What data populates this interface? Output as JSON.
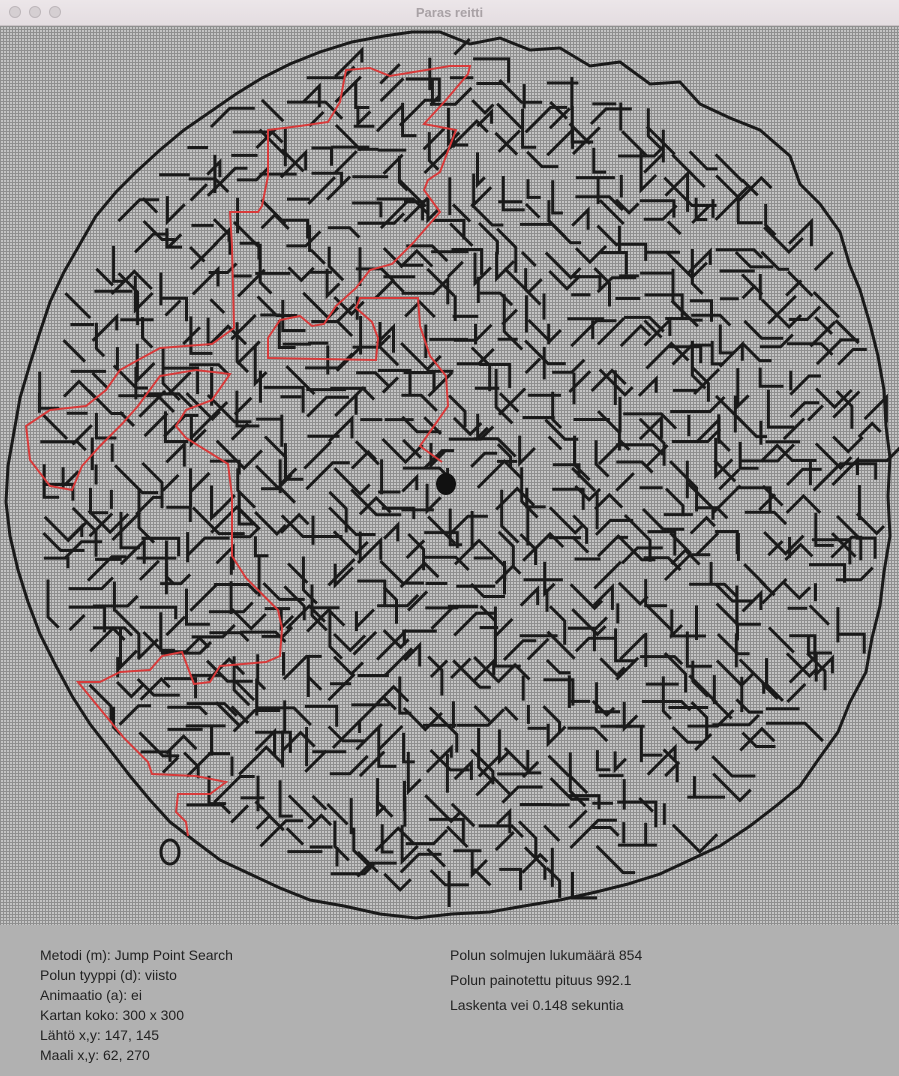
{
  "window": {
    "title": "Paras reitti"
  },
  "colors": {
    "path": "#d83a3a",
    "wall": "#1a1a1a",
    "grid": "#8f8f8f",
    "background": "#c4c4c4"
  },
  "info": {
    "method": "Metodi (m): Jump Point Search",
    "path_type": "Polun tyyppi (d): viisto",
    "animation": "Animaatio (a): ei",
    "map_size": "Kartan koko: 300 x 300",
    "start": "Lähtö x,y: 147, 145",
    "goal": "Maali x,y: 62, 270",
    "node_count": "Polun solmujen lukumäärä 854",
    "weighted_length": "Polun painotettu pituus 992.1",
    "time": "Laskenta vei 0.148 sekuntia"
  }
}
